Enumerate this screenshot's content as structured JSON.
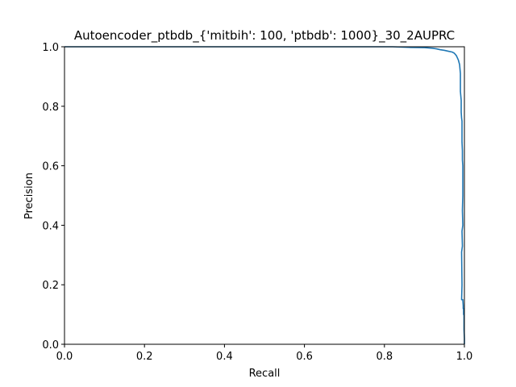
{
  "chart_data": {
    "type": "line",
    "title": "Autoencoder_ptbdb_{'mitbih': 100, 'ptbdb': 1000}_30_2AUPRC",
    "xlabel": "Recall",
    "ylabel": "Precision",
    "xlim": [
      0.0,
      1.0
    ],
    "ylim": [
      0.0,
      1.0
    ],
    "xticks": [
      "0.0",
      "0.2",
      "0.4",
      "0.6",
      "0.8",
      "1.0"
    ],
    "yticks": [
      "0.0",
      "0.2",
      "0.4",
      "0.6",
      "0.8",
      "1.0"
    ],
    "grid": false,
    "line_color": "#1f77b4",
    "series": [
      {
        "x": [
          0.0,
          0.82,
          0.86,
          0.9,
          0.92,
          0.93,
          0.94,
          0.95,
          0.96,
          0.97,
          0.975,
          0.98,
          0.985,
          0.988,
          0.99,
          0.99,
          0.992,
          0.992,
          0.993,
          0.994,
          0.994,
          0.995,
          0.995,
          0.996,
          0.996,
          0.995,
          0.996,
          0.994,
          0.995,
          0.993,
          0.994,
          0.993,
          0.996,
          0.997,
          0.997,
          0.998,
          0.998,
          0.999,
          0.999,
          1.0,
          1.0
        ],
        "y": [
          1.0,
          1.0,
          0.998,
          0.997,
          0.995,
          0.993,
          0.99,
          0.988,
          0.985,
          0.982,
          0.978,
          0.97,
          0.955,
          0.94,
          0.91,
          0.85,
          0.82,
          0.78,
          0.76,
          0.75,
          0.68,
          0.65,
          0.62,
          0.6,
          0.5,
          0.45,
          0.4,
          0.38,
          0.33,
          0.31,
          0.2,
          0.15,
          0.15,
          0.13,
          0.12,
          0.12,
          0.1,
          0.1,
          0.05,
          0.02,
          0.0
        ]
      }
    ]
  }
}
